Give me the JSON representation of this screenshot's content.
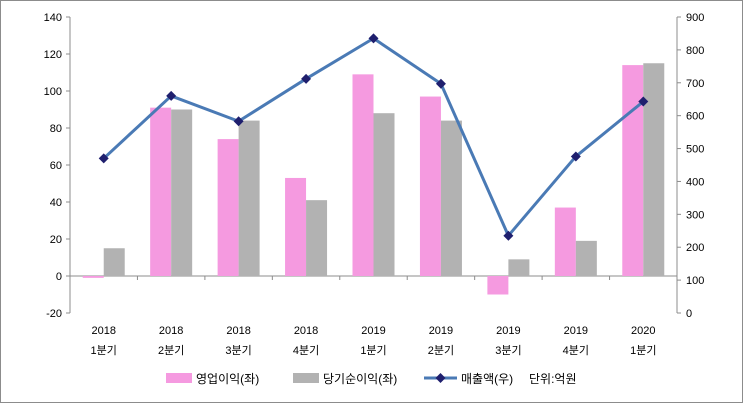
{
  "chart_data": {
    "type": "bar",
    "x_categories": [
      [
        "2018",
        "1분기"
      ],
      [
        "2018",
        "2분기"
      ],
      [
        "2018",
        "3분기"
      ],
      [
        "2018",
        "4분기"
      ],
      [
        "2019",
        "1분기"
      ],
      [
        "2019",
        "2분기"
      ],
      [
        "2019",
        "3분기"
      ],
      [
        "2019",
        "4분기"
      ],
      [
        "2020",
        "1분기"
      ]
    ],
    "series": [
      {
        "name": "영업이익(좌)",
        "kind": "bar",
        "axis": "left",
        "color": "#f59ae0",
        "values": [
          -1,
          91,
          74,
          53,
          109,
          97,
          -10,
          37,
          114
        ]
      },
      {
        "name": "당기순이익(좌)",
        "kind": "bar",
        "axis": "left",
        "color": "#b2b2b2",
        "values": [
          15,
          90,
          84,
          41,
          88,
          84,
          9,
          19,
          115
        ]
      },
      {
        "name": "매출액(우)",
        "kind": "line",
        "axis": "right",
        "color": "#4a7ab5",
        "marker_color": "#1f1f6e",
        "values": [
          470,
          660,
          583,
          712,
          835,
          697,
          235,
          476,
          643
        ]
      }
    ],
    "left_axis": {
      "min": -20,
      "max": 140,
      "step": 20,
      "ticks": [
        "-20",
        "0",
        "20",
        "40",
        "60",
        "80",
        "100",
        "120",
        "140"
      ]
    },
    "right_axis": {
      "min": 0,
      "max": 900,
      "step": 100,
      "ticks": [
        "0",
        "100",
        "200",
        "300",
        "400",
        "500",
        "600",
        "700",
        "800",
        "900"
      ]
    },
    "unit_note": "단위:억원",
    "grid": false,
    "legend_position": "bottom"
  }
}
